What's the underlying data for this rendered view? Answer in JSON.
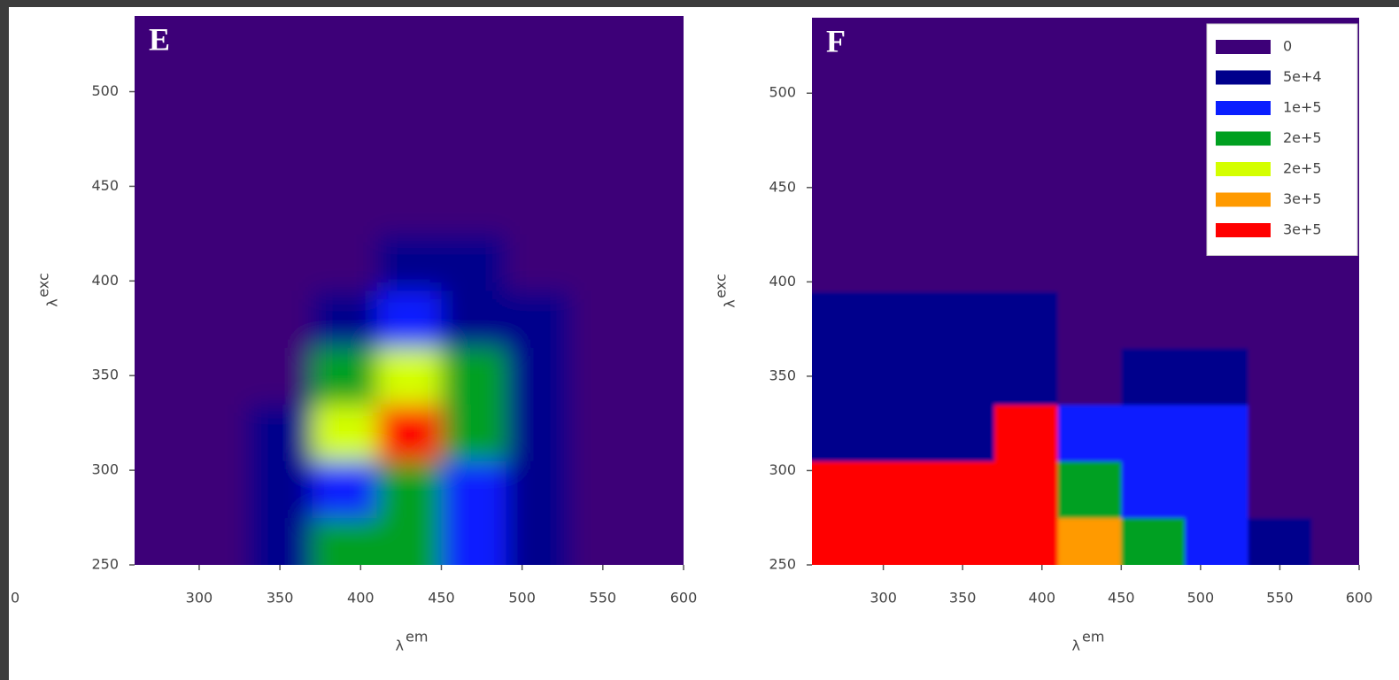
{
  "chart_data": [
    {
      "type": "heatmap",
      "panel_label": "E",
      "edge_fragment": "0",
      "xlabel": {
        "symbol": "λ",
        "script": "em"
      },
      "ylabel": {
        "symbol": "λ",
        "script": "exc"
      },
      "xlim": [
        260,
        600
      ],
      "ylim": [
        250,
        540
      ],
      "xticks": [
        300,
        350,
        400,
        450,
        500,
        550,
        600
      ],
      "yticks": [
        250,
        300,
        350,
        400,
        450,
        500
      ],
      "x": [
        270,
        310,
        350,
        390,
        430,
        470,
        510,
        550,
        590
      ],
      "y": [
        260,
        290,
        320,
        350,
        380,
        410,
        440,
        470,
        500,
        530
      ],
      "z": [
        [
          10000,
          30000,
          70000,
          170000,
          190000,
          120000,
          60000,
          30000,
          20000
        ],
        [
          0,
          20000,
          60000,
          140000,
          150000,
          110000,
          70000,
          20000,
          10000
        ],
        [
          0,
          10000,
          60000,
          220000,
          300000,
          190000,
          80000,
          30000,
          0
        ],
        [
          0,
          0,
          40000,
          150000,
          220000,
          160000,
          70000,
          30000,
          0
        ],
        [
          0,
          0,
          20000,
          60000,
          120000,
          90000,
          50000,
          20000,
          0
        ],
        [
          0,
          0,
          0,
          30000,
          60000,
          50000,
          30000,
          10000,
          0
        ],
        [
          0,
          0,
          0,
          10000,
          30000,
          30000,
          20000,
          10000,
          0
        ],
        [
          0,
          0,
          0,
          0,
          10000,
          20000,
          10000,
          0,
          0
        ],
        [
          0,
          0,
          0,
          0,
          0,
          0,
          0,
          0,
          0
        ],
        [
          0,
          0,
          0,
          0,
          0,
          0,
          0,
          0,
          0
        ]
      ]
    },
    {
      "type": "heatmap",
      "panel_label": "F",
      "xlabel": {
        "symbol": "λ",
        "script": "em"
      },
      "ylabel": {
        "symbol": "λ",
        "script": "exc"
      },
      "xlim": [
        255,
        600
      ],
      "ylim": [
        250,
        540
      ],
      "xticks": [
        300,
        350,
        400,
        450,
        500,
        550,
        600
      ],
      "yticks": [
        250,
        300,
        350,
        400,
        450,
        500
      ],
      "x": [
        270,
        310,
        350,
        390,
        430,
        470,
        510,
        550,
        590
      ],
      "y": [
        260,
        290,
        320,
        350,
        380,
        410,
        440,
        470,
        500,
        530
      ],
      "z": [
        [
          320000,
          320000,
          320000,
          320000,
          250000,
          150000,
          140000,
          60000,
          10000
        ],
        [
          320000,
          320000,
          320000,
          320000,
          160000,
          110000,
          110000,
          40000,
          0
        ],
        [
          60000,
          60000,
          70000,
          320000,
          120000,
          110000,
          100000,
          20000,
          0
        ],
        [
          60000,
          60000,
          60000,
          80000,
          40000,
          90000,
          80000,
          20000,
          0
        ],
        [
          50000,
          50000,
          50000,
          50000,
          20000,
          40000,
          40000,
          0,
          0
        ],
        [
          0,
          0,
          0,
          0,
          0,
          20000,
          20000,
          0,
          0
        ],
        [
          0,
          0,
          0,
          0,
          0,
          0,
          0,
          0,
          0
        ],
        [
          0,
          0,
          0,
          0,
          0,
          0,
          0,
          0,
          0
        ],
        [
          0,
          0,
          0,
          0,
          0,
          0,
          0,
          0,
          0
        ],
        [
          0,
          0,
          0,
          0,
          0,
          0,
          0,
          0,
          0
        ]
      ],
      "legend": "upper right",
      "levels": [
        0,
        50000,
        100000,
        150000,
        200000,
        250000,
        300000
      ],
      "level_labels": [
        "0",
        "5e+4",
        "1e+5",
        "2e+5",
        "2e+5",
        "3e+5",
        "3e+5"
      ],
      "level_colors": [
        "#3d0078",
        "#00008c",
        "#0a1eff",
        "#00a020",
        "#d4ff00",
        "#ff9a00",
        "#ff0000"
      ]
    }
  ]
}
